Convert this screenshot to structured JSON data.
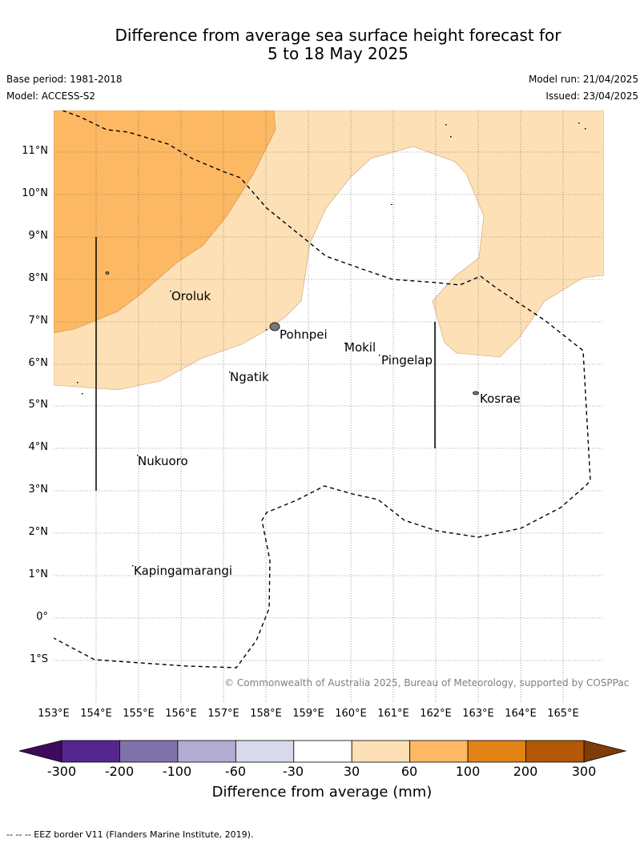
{
  "header": {
    "title_line1": "Difference from average sea surface height forecast for",
    "title_line2": "5 to 18 May 2025",
    "base_period": "Base period: 1981-2018",
    "model": "Model: ACCESS-S2",
    "model_run": "Model run: 21/04/2025",
    "issued": "Issued: 23/04/2025"
  },
  "map": {
    "lat_labels": [
      "11°N",
      "10°N",
      "9°N",
      "8°N",
      "7°N",
      "6°N",
      "5°N",
      "4°N",
      "3°N",
      "2°N",
      "1°N",
      "0°",
      "1°S"
    ],
    "lon_labels": [
      "153°E",
      "154°E",
      "155°E",
      "156°E",
      "157°E",
      "158°E",
      "159°E",
      "160°E",
      "161°E",
      "162°E",
      "163°E",
      "164°E",
      "165°E"
    ],
    "places": [
      "Oroluk",
      "Pohnpei",
      "Mokil",
      "Pingelap",
      "Ngatik",
      "Kosrae",
      "Nukuoro",
      "Kapingamarangi"
    ],
    "credit": "© Commonwealth of Australia 2025, Bureau of Meteorology, supported by COSPPac"
  },
  "colorbar": {
    "ticks": [
      "-300",
      "-200",
      "-100",
      "-60",
      "-30",
      "30",
      "60",
      "100",
      "200",
      "300"
    ],
    "colors": [
      "#3f0a5c",
      "#54278f",
      "#8073ac",
      "#b2abd2",
      "#d8daeb",
      "#ffffff",
      "#fee0b6",
      "#fdb863",
      "#e08214",
      "#b35806",
      "#7f3b08"
    ],
    "label": "Difference from average (mm)"
  },
  "footnote": "--  --  -- EEZ border V11 (Flanders Marine Institute, 2019)."
}
